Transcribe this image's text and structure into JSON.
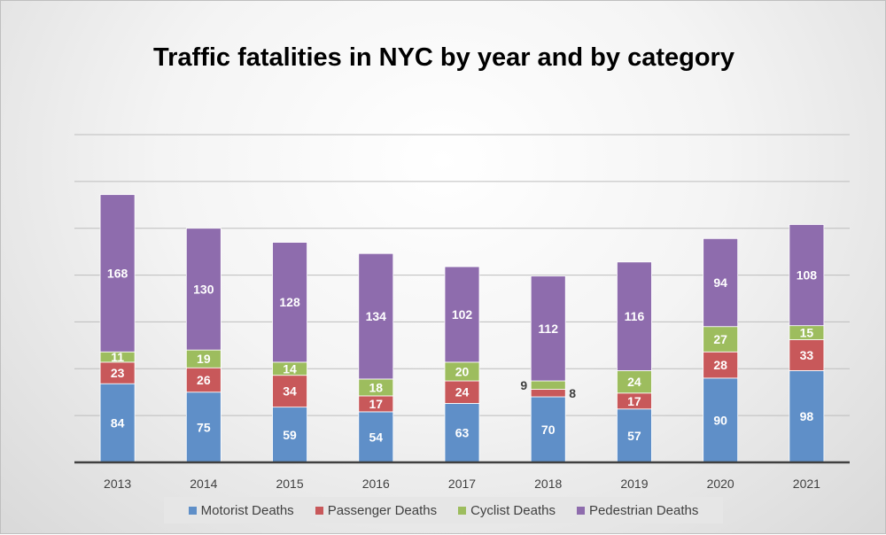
{
  "chart_data": {
    "type": "bar",
    "stacked": true,
    "title": "Traffic fatalities in NYC by year and by category",
    "xlabel": "",
    "ylabel": "",
    "ylim": [
      0,
      350
    ],
    "grid": true,
    "legend_position": "bottom",
    "categories": [
      "2013",
      "2014",
      "2015",
      "2016",
      "2017",
      "2018",
      "2019",
      "2020",
      "2021"
    ],
    "series": [
      {
        "name": "Motorist Deaths",
        "color": "#5f8fc8",
        "values": [
          84,
          75,
          59,
          54,
          63,
          70,
          57,
          90,
          98
        ]
      },
      {
        "name": "Passenger Deaths",
        "color": "#c8585a",
        "values": [
          23,
          26,
          34,
          17,
          24,
          8,
          17,
          28,
          33
        ]
      },
      {
        "name": "Cyclist Deaths",
        "color": "#9dbd5e",
        "values": [
          11,
          19,
          14,
          18,
          20,
          9,
          24,
          27,
          15
        ]
      },
      {
        "name": "Pedestrian Deaths",
        "color": "#8e6cad",
        "values": [
          168,
          130,
          128,
          134,
          102,
          112,
          116,
          94,
          108
        ]
      }
    ]
  }
}
